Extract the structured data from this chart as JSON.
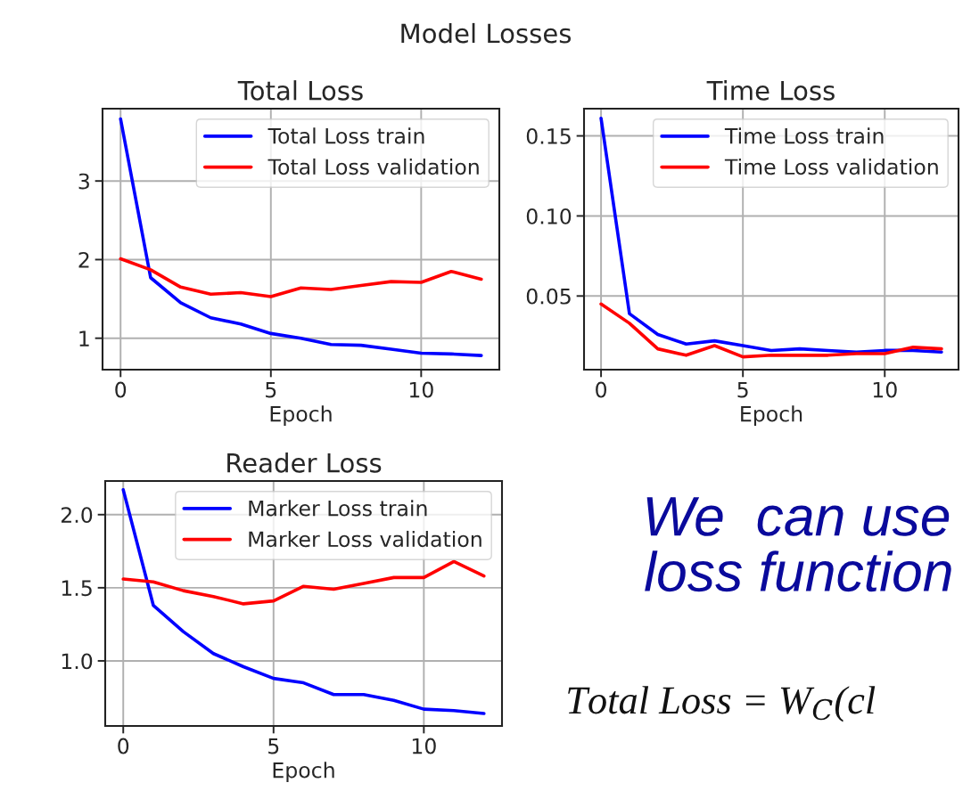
{
  "chart_data": [
    {
      "type": "line",
      "title": "Total Loss",
      "xlabel": "Epoch",
      "annotations": [
        "Model Losses"
      ],
      "x": [
        0,
        1,
        2,
        3,
        4,
        5,
        6,
        7,
        8,
        9,
        10,
        11,
        12
      ],
      "xlim": [
        -0.6,
        12.6
      ],
      "xticks": [
        0,
        5,
        10
      ],
      "ylim": [
        0.6,
        3.92
      ],
      "yticks": [
        1,
        2,
        3
      ],
      "grid": true,
      "legend": "top right",
      "series": [
        {
          "name": "Total Loss train",
          "color": "#0000ff",
          "values": [
            3.79,
            1.77,
            1.45,
            1.26,
            1.18,
            1.06,
            1.0,
            0.92,
            0.91,
            0.86,
            0.81,
            0.8,
            0.78
          ]
        },
        {
          "name": "Total Loss validation",
          "color": "#ff0000",
          "values": [
            2.01,
            1.87,
            1.65,
            1.56,
            1.58,
            1.53,
            1.64,
            1.62,
            1.67,
            1.72,
            1.71,
            1.85,
            1.75
          ]
        }
      ]
    },
    {
      "type": "line",
      "title": "Time Loss",
      "xlabel": "Epoch",
      "x": [
        0,
        1,
        2,
        3,
        4,
        5,
        6,
        7,
        8,
        9,
        10,
        11,
        12
      ],
      "xlim": [
        -0.6,
        12.6
      ],
      "xticks": [
        0,
        5,
        10
      ],
      "ylim": [
        0.004,
        0.167
      ],
      "yticks": [
        0.05,
        {
          "value": 0.1,
          "label": "0.10"
        },
        0.15
      ],
      "grid": true,
      "legend": "top right",
      "series": [
        {
          "name": "Time Loss train",
          "color": "#0000ff",
          "values": [
            0.161,
            0.039,
            0.026,
            0.02,
            0.022,
            0.019,
            0.016,
            0.017,
            0.016,
            0.015,
            0.016,
            0.016,
            0.015
          ]
        },
        {
          "name": "Time Loss validation",
          "color": "#ff0000",
          "values": [
            0.045,
            0.033,
            0.017,
            0.013,
            0.019,
            0.012,
            0.013,
            0.013,
            0.013,
            0.014,
            0.014,
            0.018,
            0.017
          ]
        }
      ]
    },
    {
      "type": "line",
      "title": "Reader Loss",
      "xlabel": "Epoch",
      "x": [
        0,
        1,
        2,
        3,
        4,
        5,
        6,
        7,
        8,
        9,
        10,
        11,
        12
      ],
      "xlim": [
        -0.6,
        12.6
      ],
      "xticks": [
        0,
        5,
        10
      ],
      "ylim": [
        0.555,
        2.23
      ],
      "yticks": [
        {
          "value": 1,
          "label": "1.0"
        },
        1.5,
        {
          "value": 2,
          "label": "2.0"
        }
      ],
      "grid": true,
      "legend": "top right",
      "series": [
        {
          "name": "Marker Loss train",
          "color": "#0000ff",
          "values": [
            2.17,
            1.38,
            1.2,
            1.05,
            0.96,
            0.88,
            0.85,
            0.77,
            0.77,
            0.73,
            0.67,
            0.66,
            0.64
          ]
        },
        {
          "name": "Marker Loss validation",
          "color": "#ff0000",
          "values": [
            1.56,
            1.54,
            1.48,
            1.44,
            1.39,
            1.41,
            1.51,
            1.49,
            1.53,
            1.57,
            1.57,
            1.68,
            1.58
          ]
        }
      ]
    },
    {
      "type": "other",
      "annotations": [
        "We  can use",
        "loss function",
        "Total Loss = W$_{C}$(cl"
      ]
    }
  ]
}
